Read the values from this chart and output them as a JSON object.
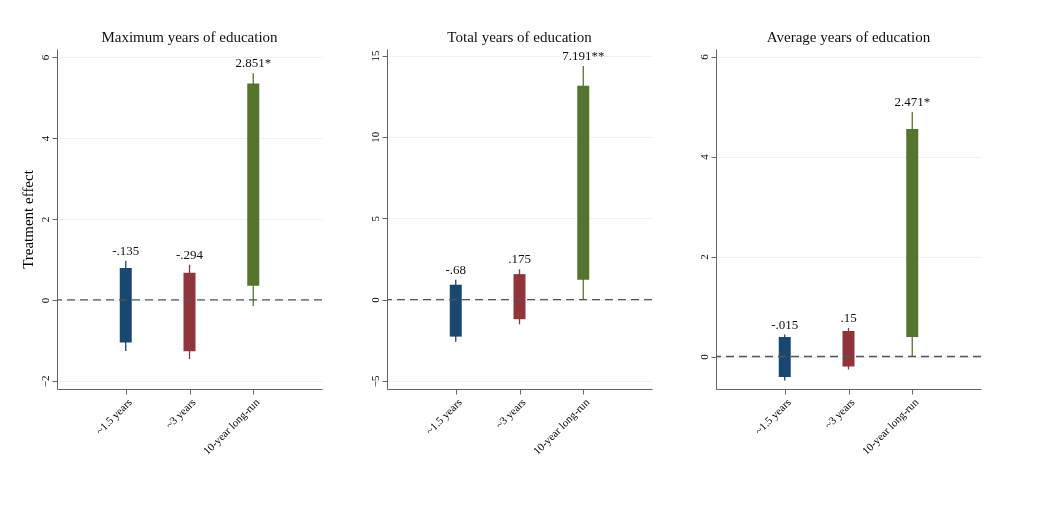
{
  "chart_data": [
    {
      "type": "bar",
      "title": "Maximum years of education",
      "ylabel": "Treatment effect",
      "categories": [
        "~1.5 years",
        "~3 years",
        "10-year long-run"
      ],
      "base": [
        -1.05,
        -1.27,
        0.35
      ],
      "values": [
        1.84,
        1.94,
        5.0
      ],
      "errors": [
        [
          -1.26,
          0.97
        ],
        [
          -1.46,
          0.87
        ],
        [
          -0.15,
          5.6
        ]
      ],
      "colors": [
        "#1a476f",
        "#90353b",
        "#55752f"
      ],
      "annotations": [
        {
          "text": "-.135",
          "x": "~1.5 years",
          "y": 0.97
        },
        {
          "text": "-.294",
          "x": "~3 years",
          "y": 0.87
        },
        {
          "text": "2.851*",
          "x": "10-year long-run",
          "y": 5.6
        }
      ],
      "ylim": [
        -2.2,
        6.2
      ],
      "yticks": [
        -2,
        0,
        2,
        4,
        6
      ],
      "grid": "y",
      "ref_lines": [
        {
          "axis": "y",
          "value": 0,
          "color": "#555555",
          "line_style": "dashed"
        }
      ]
    },
    {
      "type": "bar",
      "title": "Total years of education",
      "categories": [
        "~1.5 years",
        "~3 years",
        "10-year long-run"
      ],
      "base": [
        -2.28,
        -1.21,
        1.21
      ],
      "values": [
        3.19,
        2.77,
        11.93
      ],
      "errors": [
        [
          -2.59,
          1.21
        ],
        [
          -1.52,
          1.86
        ],
        [
          0.0,
          14.35
        ]
      ],
      "colors": [
        "#1a476f",
        "#90353b",
        "#55752f"
      ],
      "annotations": [
        {
          "text": "-.68",
          "x": "~1.5 years",
          "y": 1.21
        },
        {
          "text": ".175",
          "x": "~3 years",
          "y": 1.86
        },
        {
          "text": "7.191**",
          "x": "10-year long-run",
          "y": 14.35
        }
      ],
      "ylim": [
        -5.5,
        15.4
      ],
      "yticks": [
        -5,
        0,
        5,
        10,
        15
      ],
      "grid": "y",
      "ref_lines": [
        {
          "axis": "y",
          "value": 0,
          "color": "#555555",
          "line_style": "dashed"
        }
      ]
    },
    {
      "type": "bar",
      "title": "Average years of education",
      "categories": [
        "~1.5 years",
        "~3 years",
        "10-year long-run"
      ],
      "base": [
        -0.41,
        -0.2,
        0.39
      ],
      "values": [
        0.8,
        0.71,
        4.16
      ],
      "errors": [
        [
          -0.48,
          0.44
        ],
        [
          -0.26,
          0.57
        ],
        [
          0.0,
          4.89
        ]
      ],
      "colors": [
        "#1a476f",
        "#90353b",
        "#55752f"
      ],
      "annotations": [
        {
          "text": "-.015",
          "x": "~1.5 years",
          "y": 0.44
        },
        {
          "text": ".15",
          "x": "~3 years",
          "y": 0.57
        },
        {
          "text": "2.471*",
          "x": "10-year long-run",
          "y": 4.89
        }
      ],
      "ylim": [
        -0.65,
        6.15
      ],
      "yticks": [
        0,
        2,
        4,
        6
      ],
      "grid": "y",
      "ref_lines": [
        {
          "axis": "y",
          "value": 0,
          "color": "#555555",
          "line_style": "dashed"
        }
      ]
    }
  ]
}
